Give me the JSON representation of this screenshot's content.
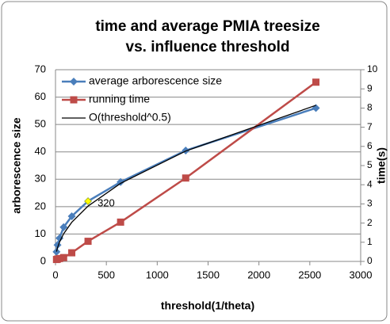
{
  "chart_data": {
    "type": "line",
    "title": [
      "time and average PMIA treesize",
      "vs. influence threshold"
    ],
    "x_label": "threshold(1/theta)",
    "y_label": "arborescence size",
    "y2_label": "time(s)",
    "xlim": [
      0,
      3000
    ],
    "xticks": [
      0,
      500,
      1000,
      1500,
      2000,
      2500,
      3000
    ],
    "ylim": [
      0,
      70
    ],
    "yticks": [
      0,
      10,
      20,
      30,
      40,
      50,
      60,
      70
    ],
    "y2lim": [
      0,
      10
    ],
    "y2ticks": [
      0,
      1,
      2,
      3,
      4,
      5,
      6,
      7,
      8,
      9,
      10
    ],
    "grid": true,
    "legend": "top-left",
    "series": [
      {
        "name": "average arborescence size",
        "color": "#4a7ebb",
        "marker": "diamond",
        "x": [
          10,
          20,
          40,
          80,
          160,
          320,
          640,
          1280,
          2560
        ],
        "values": [
          3.5,
          6,
          8.5,
          12.5,
          16.5,
          22,
          29,
          40.5,
          56
        ]
      },
      {
        "name": "running time",
        "color": "#be4b48",
        "marker": "square",
        "axis": "y2",
        "x": [
          10,
          20,
          40,
          80,
          160,
          320,
          640,
          1280,
          2560
        ],
        "values": [
          0.1,
          0.12,
          0.15,
          0.2,
          0.45,
          1.05,
          2.05,
          4.35,
          9.35
        ]
      },
      {
        "name": "O(threshold^0.5)",
        "color": "#000000",
        "marker": "none",
        "x": [
          10,
          20,
          40,
          80,
          160,
          320,
          640,
          1280,
          2560
        ],
        "values": [
          3.6,
          5.0,
          7.1,
          10.1,
          14.3,
          20.2,
          28.5,
          40.3,
          57.0
        ]
      }
    ],
    "annotation": {
      "text": "320",
      "x": 320,
      "y": 22,
      "color": "#ffff00"
    }
  }
}
